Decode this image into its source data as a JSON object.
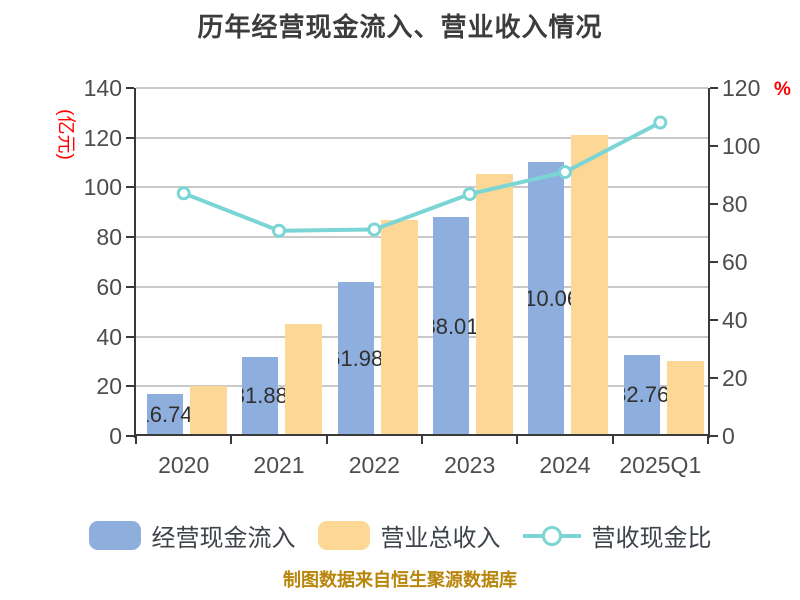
{
  "title": "历年经营现金流入、营业收入情况",
  "footer": "制图数据来自恒生聚源数据库",
  "legend": {
    "items": [
      {
        "label": "经营现金流入",
        "type": "bar",
        "color": "#8EAFDD"
      },
      {
        "label": "营业总收入",
        "type": "bar",
        "color": "#FDD795"
      },
      {
        "label": "营收现金比",
        "type": "line",
        "color": "#7BD5D5"
      }
    ]
  },
  "colors": {
    "bar_blue": "#8EAFDD",
    "bar_yellow": "#FDD795",
    "line_teal": "#7BD5D5",
    "marker_fill": "#FFFFFF",
    "gridline": "#C9C9C9",
    "axis": "#3A3A3A",
    "tick_text": "#4D4D4D",
    "axis_unit_red": "#FF0000",
    "title_text": "#3C3C3C",
    "footer_gold": "#B8860B"
  },
  "chart_data": {
    "type": "bar",
    "title": "历年经营现金流入、营业收入情况",
    "categories": [
      "2020",
      "2021",
      "2022",
      "2023",
      "2024",
      "2025Q1"
    ],
    "series": [
      {
        "name": "经营现金流入",
        "key": "operating-cash-inflow",
        "type": "bar",
        "axis": "left",
        "color": "#8EAFDD",
        "values": [
          16.74,
          31.88,
          61.98,
          88.01,
          110.06,
          32.76
        ],
        "labels": [
          "16.74",
          "31.88",
          "61.98",
          "88.01",
          "110.06",
          "32.76"
        ]
      },
      {
        "name": "营业总收入",
        "key": "total-revenue",
        "type": "bar",
        "axis": "left",
        "color": "#FDD795",
        "values": [
          20.0,
          45.0,
          87.1,
          105.5,
          121.0,
          30.3
        ]
      },
      {
        "name": "营收现金比",
        "key": "revenue-cash-ratio",
        "type": "line",
        "axis": "right",
        "color": "#7BD5D5",
        "values": [
          83.7,
          70.8,
          71.2,
          83.4,
          91.0,
          108.1
        ]
      }
    ],
    "left_axis": {
      "label": "(亿元)",
      "min": 0,
      "max": 140,
      "step": 20,
      "ticks": [
        "0",
        "20",
        "40",
        "60",
        "80",
        "100",
        "120",
        "140"
      ]
    },
    "right_axis": {
      "label": "%",
      "min": 0,
      "max": 120,
      "step": 20,
      "ticks": [
        "0",
        "20",
        "40",
        "60",
        "80",
        "100",
        "120"
      ]
    },
    "grid": true,
    "legend_position": "bottom"
  }
}
